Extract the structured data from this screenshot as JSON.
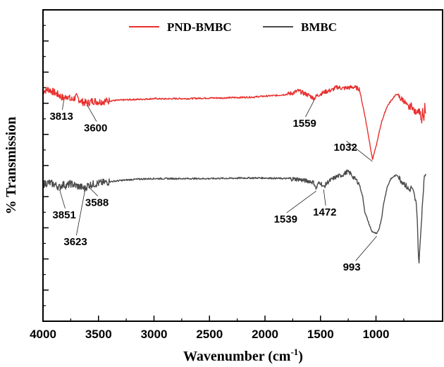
{
  "chart_data": {
    "type": "line",
    "xlabel": "Wavenumber (cm",
    "xlabel_sup": "-1",
    "xlabel_end": ")",
    "ylabel": "% Transmission",
    "xlim": [
      4000,
      400
    ],
    "x_reversed": true,
    "y_ticks_labeled": false,
    "x_ticks": [
      4000,
      3500,
      3000,
      2500,
      2000,
      1500,
      1000
    ],
    "x_tick_labels": [
      "4000",
      "3500",
      "3000",
      "2500",
      "2000",
      "1500",
      "1000"
    ],
    "legend_position": "top",
    "series": [
      {
        "name": "PND-BMBC",
        "color": "#e8302e",
        "points": [
          [
            4000,
            74.0
          ],
          [
            3950,
            74.5
          ],
          [
            3900,
            73.5
          ],
          [
            3850,
            72.5
          ],
          [
            3813,
            71.5
          ],
          [
            3780,
            72.5
          ],
          [
            3750,
            71.0
          ],
          [
            3700,
            72.0
          ],
          [
            3650,
            70.5
          ],
          [
            3600,
            70.0
          ],
          [
            3550,
            70.8
          ],
          [
            3500,
            70.5
          ],
          [
            3400,
            70.8
          ],
          [
            3300,
            71.0
          ],
          [
            3200,
            71.2
          ],
          [
            3100,
            71.3
          ],
          [
            3000,
            71.5
          ],
          [
            2900,
            71.4
          ],
          [
            2800,
            71.5
          ],
          [
            2700,
            71.5
          ],
          [
            2600,
            71.6
          ],
          [
            2500,
            71.7
          ],
          [
            2400,
            71.7
          ],
          [
            2300,
            71.8
          ],
          [
            2200,
            71.9
          ],
          [
            2100,
            72.0
          ],
          [
            2000,
            72.3
          ],
          [
            1900,
            72.5
          ],
          [
            1800,
            72.9
          ],
          [
            1750,
            73.3
          ],
          [
            1700,
            74.0
          ],
          [
            1650,
            73.2
          ],
          [
            1600,
            72.5
          ],
          [
            1559,
            71.5
          ],
          [
            1530,
            72.5
          ],
          [
            1500,
            73.0
          ],
          [
            1450,
            73.8
          ],
          [
            1400,
            74.2
          ],
          [
            1350,
            75.2
          ],
          [
            1300,
            74.8
          ],
          [
            1250,
            75.0
          ],
          [
            1200,
            75.2
          ],
          [
            1150,
            74.6
          ],
          [
            1100,
            66.0
          ],
          [
            1060,
            58.0
          ],
          [
            1032,
            52.0
          ],
          [
            1000,
            56.0
          ],
          [
            950,
            64.0
          ],
          [
            900,
            69.0
          ],
          [
            870,
            70.5
          ],
          [
            840,
            72.0
          ],
          [
            810,
            73.0
          ],
          [
            780,
            71.5
          ],
          [
            750,
            71.0
          ],
          [
            720,
            69.0
          ],
          [
            700,
            68.5
          ],
          [
            680,
            69.5
          ],
          [
            650,
            67.0
          ],
          [
            620,
            68.0
          ],
          [
            600,
            67.0
          ],
          [
            590,
            63.0
          ],
          [
            580,
            67.5
          ],
          [
            570,
            64.0
          ],
          [
            560,
            69.0
          ],
          [
            550,
            65.0
          ]
        ]
      },
      {
        "name": "BMBC",
        "color": "#4a4a4a",
        "points": [
          [
            4000,
            44.0
          ],
          [
            3950,
            44.5
          ],
          [
            3900,
            44.0
          ],
          [
            3851,
            43.0
          ],
          [
            3820,
            44.0
          ],
          [
            3790,
            43.5
          ],
          [
            3750,
            44.2
          ],
          [
            3700,
            43.5
          ],
          [
            3650,
            43.0
          ],
          [
            3623,
            42.5
          ],
          [
            3600,
            43.5
          ],
          [
            3588,
            43.8
          ],
          [
            3550,
            44.0
          ],
          [
            3500,
            44.3
          ],
          [
            3400,
            44.8
          ],
          [
            3300,
            45.2
          ],
          [
            3200,
            45.5
          ],
          [
            3100,
            45.7
          ],
          [
            3000,
            45.8
          ],
          [
            2900,
            45.8
          ],
          [
            2800,
            45.8
          ],
          [
            2700,
            45.8
          ],
          [
            2600,
            45.8
          ],
          [
            2500,
            45.8
          ],
          [
            2400,
            45.9
          ],
          [
            2300,
            45.9
          ],
          [
            2200,
            46.0
          ],
          [
            2100,
            46.0
          ],
          [
            2000,
            46.0
          ],
          [
            1900,
            45.9
          ],
          [
            1800,
            45.8
          ],
          [
            1700,
            45.6
          ],
          [
            1650,
            45.2
          ],
          [
            1600,
            45.0
          ],
          [
            1560,
            44.5
          ],
          [
            1539,
            42.5
          ],
          [
            1520,
            44.2
          ],
          [
            1500,
            44.6
          ],
          [
            1472,
            43.0
          ],
          [
            1440,
            44.5
          ],
          [
            1400,
            45.5
          ],
          [
            1350,
            46.5
          ],
          [
            1300,
            47.0
          ],
          [
            1260,
            48.0
          ],
          [
            1230,
            47.5
          ],
          [
            1200,
            46.0
          ],
          [
            1180,
            45.5
          ],
          [
            1150,
            44.0
          ],
          [
            1120,
            40.0
          ],
          [
            1100,
            35.0
          ],
          [
            1080,
            33.0
          ],
          [
            1060,
            31.0
          ],
          [
            1040,
            29.0
          ],
          [
            1020,
            28.5
          ],
          [
            993,
            28.0
          ],
          [
            970,
            30.0
          ],
          [
            950,
            33.0
          ],
          [
            930,
            38.0
          ],
          [
            900,
            43.0
          ],
          [
            870,
            45.5
          ],
          [
            840,
            46.5
          ],
          [
            810,
            47.0
          ],
          [
            790,
            46.0
          ],
          [
            770,
            45.0
          ],
          [
            750,
            44.5
          ],
          [
            720,
            43.0
          ],
          [
            700,
            42.0
          ],
          [
            680,
            43.0
          ],
          [
            660,
            41.0
          ],
          [
            640,
            38.0
          ],
          [
            630,
            35.0
          ],
          [
            615,
            18.0
          ],
          [
            600,
            26.0
          ],
          [
            585,
            36.0
          ],
          [
            570,
            44.0
          ],
          [
            560,
            47.0
          ],
          [
            550,
            47.5
          ]
        ]
      }
    ],
    "annotations": [
      {
        "label": "3813",
        "series": 0,
        "x": 3813
      },
      {
        "label": "3600",
        "series": 0,
        "x": 3600
      },
      {
        "label": "1559",
        "series": 0,
        "x": 1559
      },
      {
        "label": "1032",
        "series": 0,
        "x": 1032
      },
      {
        "label": "3851",
        "series": 1,
        "x": 3851
      },
      {
        "label": "3623",
        "series": 1,
        "x": 3623
      },
      {
        "label": "3588",
        "series": 1,
        "x": 3588
      },
      {
        "label": "1539",
        "series": 1,
        "x": 1539
      },
      {
        "label": "1472",
        "series": 1,
        "x": 1472
      },
      {
        "label": "993",
        "series": 1,
        "x": 993
      }
    ]
  }
}
